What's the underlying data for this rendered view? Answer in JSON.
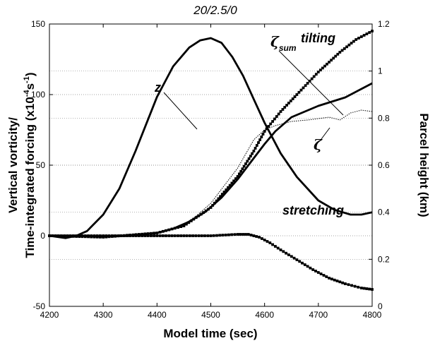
{
  "chart_data": {
    "type": "line",
    "title": "20/2.5/0",
    "xlabel": "Model time (sec)",
    "ylabel_line1": "Vertical  vorticity/",
    "ylabel_line2": "Time-integrated forcing (x10",
    "ylabel_sup": "-4",
    "ylabel_mid": "s",
    "ylabel_sup2": "-1",
    "ylabel_end": ")",
    "y2label": "Parcel height (km)",
    "xlim": [
      4200,
      4800
    ],
    "ylim": [
      -50,
      150
    ],
    "y2lim": [
      0,
      1.2
    ],
    "xticks": [
      "4200",
      "4300",
      "4400",
      "4500",
      "4600",
      "4700",
      "4800"
    ],
    "yticks": [
      "-50",
      "0",
      "50",
      "100",
      "150"
    ],
    "y2ticks": [
      "0",
      "0.2",
      "0.4",
      "0.6",
      "0.8",
      "1",
      "1.2"
    ],
    "grid": "dotted horizontal",
    "series": [
      {
        "name": "z",
        "axis": "right",
        "style": "thick-solid",
        "x": [
          4200,
          4230,
          4250,
          4270,
          4300,
          4330,
          4360,
          4400,
          4430,
          4460,
          4480,
          4500,
          4520,
          4540,
          4560,
          4580,
          4600,
          4630,
          4660,
          4700,
          4730,
          4760,
          4780,
          4800
        ],
        "y": [
          0.3,
          0.29,
          0.3,
          0.32,
          0.39,
          0.5,
          0.66,
          0.89,
          1.02,
          1.1,
          1.13,
          1.14,
          1.12,
          1.06,
          0.98,
          0.88,
          0.78,
          0.65,
          0.55,
          0.45,
          0.41,
          0.39,
          0.39,
          0.4
        ]
      },
      {
        "name": "ζsum",
        "axis": "left",
        "style": "thick-solid",
        "x": [
          4200,
          4250,
          4300,
          4350,
          4400,
          4430,
          4460,
          4490,
          4520,
          4550,
          4580,
          4600,
          4620,
          4650,
          4700,
          4750,
          4800
        ],
        "y": [
          0,
          0,
          -0.5,
          0,
          2,
          5,
          10,
          17,
          27,
          40,
          55,
          65,
          74,
          84,
          92,
          98,
          108
        ]
      },
      {
        "name": "ζ",
        "axis": "left",
        "style": "thin-dotted",
        "x": [
          4200,
          4300,
          4400,
          4440,
          4470,
          4500,
          4520,
          4550,
          4580,
          4600,
          4620,
          4650,
          4680,
          4700,
          4720,
          4740,
          4760,
          4780,
          4800
        ],
        "y": [
          0,
          0,
          2,
          6,
          13,
          23,
          33,
          48,
          68,
          75,
          78,
          81,
          82,
          83,
          84,
          82,
          87,
          89,
          88
        ]
      },
      {
        "name": "tilting",
        "axis": "left",
        "style": "square-markers",
        "x": [
          4200,
          4300,
          4400,
          4450,
          4500,
          4550,
          4580,
          4600,
          4630,
          4660,
          4700,
          4740,
          4770,
          4800
        ],
        "y": [
          0,
          -1,
          2,
          7,
          20,
          42,
          60,
          74,
          88,
          100,
          116,
          130,
          139,
          145
        ]
      },
      {
        "name": "stretching",
        "axis": "left",
        "style": "square-markers",
        "x": [
          4200,
          4300,
          4400,
          4500,
          4550,
          4570,
          4590,
          4610,
          4630,
          4660,
          4690,
          4720,
          4750,
          4780,
          4800
        ],
        "y": [
          0,
          0,
          0,
          0,
          1,
          1,
          -1,
          -5,
          -10,
          -17,
          -24,
          -30,
          -34,
          -37,
          -38
        ]
      }
    ],
    "annotations": {
      "z": "z",
      "zeta_sum_symbol": "ζ",
      "zeta_sum_sub": "sum",
      "tilting": "tilting",
      "zeta": "ζ",
      "stretching": "stretching"
    }
  }
}
